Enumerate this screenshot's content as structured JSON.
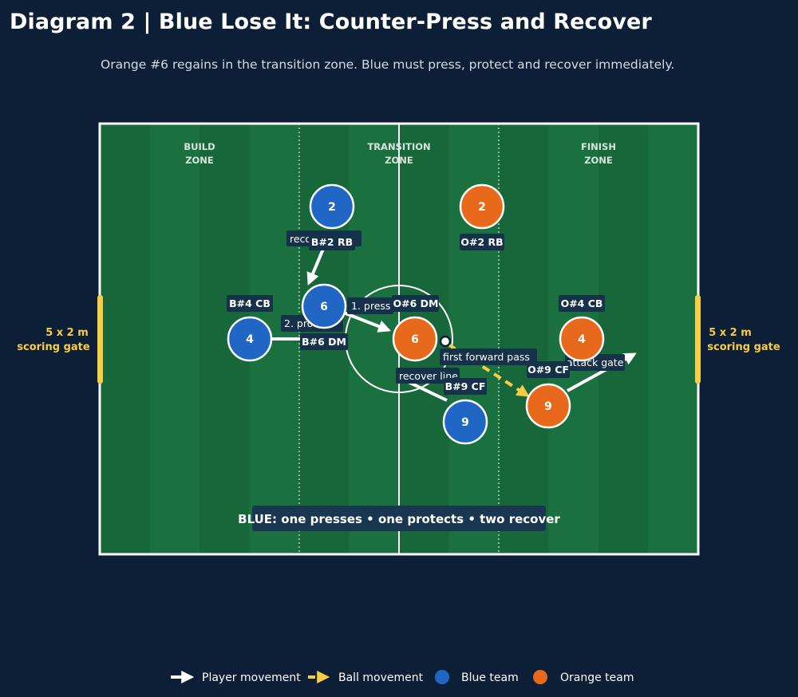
{
  "title": "Diagram 2 | Blue Lose It: Counter-Press and Recover",
  "subtitle": "Orange #6 regains in the transition zone. Blue must press, protect and recover immediately.",
  "colors": {
    "background": "#0c1f36",
    "pitch_dark": "#17673a",
    "pitch_light": "#1b7040",
    "blue_team": "#1f66c5",
    "orange_team": "#e8681c",
    "gate": "#f6cd43",
    "label_bg": "#16324a"
  },
  "zones": [
    {
      "line1": "BUILD",
      "line2": "ZONE"
    },
    {
      "line1": "TRANSITION",
      "line2": "ZONE"
    },
    {
      "line1": "FINISH",
      "line2": "ZONE"
    }
  ],
  "gates": [
    {
      "line1": "5 x 2 m",
      "line2": "scoring gate"
    },
    {
      "line1": "5 x 2 m",
      "line2": "scoring gate"
    }
  ],
  "players": [
    {
      "team": "blue",
      "number": "2",
      "label": "B#2 RB"
    },
    {
      "team": "blue",
      "number": "6",
      "label": "B#6 DM"
    },
    {
      "team": "blue",
      "number": "4",
      "label": "B#4 CB"
    },
    {
      "team": "blue",
      "number": "9",
      "label": "B#9 CF"
    },
    {
      "team": "orange",
      "number": "2",
      "label": "O#2 RB"
    },
    {
      "team": "orange",
      "number": "6",
      "label": "O#6 DM"
    },
    {
      "team": "orange",
      "number": "4",
      "label": "O#4 CB"
    },
    {
      "team": "orange",
      "number": "9",
      "label": "O#9 CF"
    }
  ],
  "movements": [
    {
      "kind": "player",
      "label": "recover line"
    },
    {
      "kind": "player",
      "label": "1. press"
    },
    {
      "kind": "player",
      "label": "2. protect"
    },
    {
      "kind": "player",
      "label": "recover line"
    },
    {
      "kind": "ball",
      "label": "first forward pass"
    },
    {
      "kind": "player",
      "label": "attack gate"
    }
  ],
  "banner": "BLUE: one presses • one protects • two recover",
  "legend": [
    {
      "icon": "white-arrow-icon",
      "label": "Player movement"
    },
    {
      "icon": "yellow-dashed-arrow-icon",
      "label": "Ball movement"
    },
    {
      "icon": "blue-dot-icon",
      "label": "Blue team"
    },
    {
      "icon": "orange-dot-icon",
      "label": "Orange team"
    }
  ]
}
